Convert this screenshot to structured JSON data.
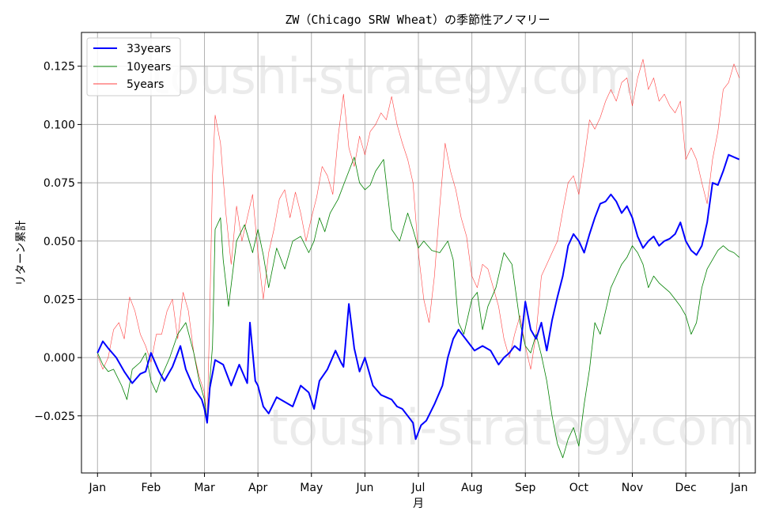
{
  "chart_data": {
    "type": "line",
    "title": "ZW（Chicago SRW Wheat）の季節性アノマリー",
    "xlabel": "月",
    "ylabel": "リターン累計",
    "x_ticks": [
      "Jan",
      "Feb",
      "Mar",
      "Apr",
      "May",
      "Jun",
      "Jul",
      "Aug",
      "Sep",
      "Oct",
      "Nov",
      "Dec",
      "Jan"
    ],
    "y_ticks": [
      "0.125",
      "0.100",
      "0.075",
      "0.050",
      "0.025",
      "0.000",
      "−0.025"
    ],
    "y_tick_values": [
      0.125,
      0.1,
      0.075,
      0.05,
      0.025,
      0.0,
      -0.025
    ],
    "ylim": [
      -0.0495,
      0.1395
    ],
    "xlim": [
      -0.3,
      12.3
    ],
    "grid": true,
    "legend_position": "top-left",
    "watermark": "toushi-strategy.com",
    "series": [
      {
        "name": "33years",
        "color": "#0000ff",
        "x": [
          0.0,
          0.1,
          0.2,
          0.35,
          0.5,
          0.65,
          0.8,
          0.9,
          1.0,
          1.15,
          1.25,
          1.4,
          1.55,
          1.65,
          1.8,
          1.95,
          2.0,
          2.05,
          2.1,
          2.2,
          2.35,
          2.5,
          2.65,
          2.8,
          2.85,
          2.95,
          3.0,
          3.1,
          3.2,
          3.35,
          3.5,
          3.65,
          3.8,
          3.95,
          4.05,
          4.15,
          4.3,
          4.45,
          4.55,
          4.6,
          4.7,
          4.8,
          4.9,
          5.0,
          5.15,
          5.3,
          5.5,
          5.6,
          5.7,
          5.8,
          5.9,
          5.95,
          6.05,
          6.15,
          6.3,
          6.45,
          6.55,
          6.65,
          6.75,
          6.85,
          6.95,
          7.05,
          7.2,
          7.35,
          7.5,
          7.6,
          7.7,
          7.8,
          7.9,
          8.0,
          8.1,
          8.2,
          8.3,
          8.4,
          8.5,
          8.6,
          8.7,
          8.8,
          8.9,
          9.0,
          9.1,
          9.2,
          9.3,
          9.4,
          9.5,
          9.6,
          9.7,
          9.8,
          9.9,
          10.0,
          10.1,
          10.2,
          10.3,
          10.4,
          10.5,
          10.6,
          10.7,
          10.8,
          10.9,
          11.0,
          11.1,
          11.2,
          11.3,
          11.4,
          11.5,
          11.6,
          11.7,
          11.8,
          11.9,
          12.0
        ],
        "values": [
          0.002,
          0.007,
          0.004,
          0.0,
          -0.006,
          -0.011,
          -0.007,
          -0.006,
          0.002,
          -0.006,
          -0.01,
          -0.004,
          0.005,
          -0.005,
          -0.013,
          -0.018,
          -0.022,
          -0.028,
          -0.013,
          -0.001,
          -0.003,
          -0.012,
          -0.003,
          -0.011,
          0.015,
          -0.01,
          -0.012,
          -0.021,
          -0.024,
          -0.017,
          -0.019,
          -0.021,
          -0.012,
          -0.015,
          -0.022,
          -0.01,
          -0.005,
          0.003,
          -0.002,
          -0.004,
          0.023,
          0.004,
          -0.006,
          0.0,
          -0.012,
          -0.016,
          -0.018,
          -0.021,
          -0.022,
          -0.025,
          -0.028,
          -0.035,
          -0.029,
          -0.027,
          -0.02,
          -0.012,
          0.0,
          0.008,
          0.012,
          0.009,
          0.006,
          0.003,
          0.005,
          0.003,
          -0.003,
          0.0,
          0.002,
          0.005,
          0.003,
          0.024,
          0.012,
          0.008,
          0.015,
          0.003,
          0.016,
          0.026,
          0.035,
          0.048,
          0.053,
          0.05,
          0.045,
          0.053,
          0.06,
          0.066,
          0.067,
          0.07,
          0.067,
          0.062,
          0.065,
          0.06,
          0.052,
          0.047,
          0.05,
          0.052,
          0.048,
          0.05,
          0.051,
          0.053,
          0.058,
          0.05,
          0.046,
          0.044,
          0.048,
          0.058,
          0.075,
          0.074,
          0.08,
          0.087,
          0.086,
          0.085
        ]
      },
      {
        "name": "10years",
        "color": "#008000",
        "x": [
          0.0,
          0.1,
          0.2,
          0.3,
          0.45,
          0.55,
          0.65,
          0.8,
          0.9,
          1.0,
          1.1,
          1.2,
          1.35,
          1.5,
          1.65,
          1.8,
          1.9,
          2.0,
          2.05,
          2.1,
          2.15,
          2.2,
          2.3,
          2.35,
          2.45,
          2.6,
          2.75,
          2.9,
          3.0,
          3.1,
          3.2,
          3.35,
          3.5,
          3.65,
          3.8,
          3.95,
          4.05,
          4.15,
          4.25,
          4.35,
          4.5,
          4.6,
          4.7,
          4.8,
          4.9,
          5.0,
          5.1,
          5.2,
          5.35,
          5.5,
          5.65,
          5.8,
          5.9,
          6.0,
          6.1,
          6.25,
          6.4,
          6.55,
          6.65,
          6.75,
          6.85,
          7.0,
          7.1,
          7.2,
          7.3,
          7.45,
          7.6,
          7.75,
          7.9,
          8.0,
          8.1,
          8.2,
          8.3,
          8.4,
          8.5,
          8.6,
          8.7,
          8.8,
          8.9,
          9.0,
          9.1,
          9.2,
          9.3,
          9.4,
          9.5,
          9.6,
          9.7,
          9.8,
          9.9,
          10.0,
          10.1,
          10.2,
          10.3,
          10.4,
          10.5,
          10.6,
          10.7,
          10.8,
          10.9,
          11.0,
          11.1,
          11.2,
          11.3,
          11.4,
          11.5,
          11.6,
          11.7,
          11.8,
          11.9,
          12.0
        ],
        "values": [
          0.002,
          -0.003,
          -0.006,
          -0.005,
          -0.012,
          -0.018,
          -0.005,
          -0.002,
          0.002,
          -0.01,
          -0.015,
          -0.008,
          0.0,
          0.01,
          0.015,
          0.002,
          -0.01,
          -0.018,
          -0.027,
          -0.01,
          0.005,
          0.055,
          0.06,
          0.042,
          0.022,
          0.05,
          0.057,
          0.045,
          0.055,
          0.044,
          0.03,
          0.047,
          0.038,
          0.05,
          0.052,
          0.045,
          0.05,
          0.06,
          0.054,
          0.062,
          0.068,
          0.074,
          0.08,
          0.086,
          0.075,
          0.072,
          0.074,
          0.08,
          0.085,
          0.055,
          0.05,
          0.062,
          0.055,
          0.047,
          0.05,
          0.046,
          0.045,
          0.05,
          0.042,
          0.015,
          0.01,
          0.025,
          0.028,
          0.012,
          0.022,
          0.03,
          0.045,
          0.04,
          0.015,
          0.005,
          0.002,
          0.01,
          0.001,
          -0.01,
          -0.025,
          -0.037,
          -0.043,
          -0.035,
          -0.03,
          -0.038,
          -0.02,
          -0.005,
          0.015,
          0.01,
          0.02,
          0.03,
          0.035,
          0.04,
          0.043,
          0.048,
          0.045,
          0.04,
          0.03,
          0.035,
          0.032,
          0.03,
          0.028,
          0.025,
          0.022,
          0.018,
          0.01,
          0.015,
          0.03,
          0.038,
          0.042,
          0.046,
          0.048,
          0.046,
          0.045,
          0.043
        ]
      },
      {
        "name": "5years",
        "color": "#ff0000",
        "x": [
          0.0,
          0.1,
          0.2,
          0.3,
          0.4,
          0.5,
          0.6,
          0.7,
          0.8,
          0.9,
          1.0,
          1.1,
          1.2,
          1.3,
          1.4,
          1.5,
          1.6,
          1.7,
          1.8,
          1.9,
          2.0,
          2.05,
          2.1,
          2.15,
          2.2,
          2.3,
          2.4,
          2.5,
          2.6,
          2.7,
          2.8,
          2.9,
          3.0,
          3.1,
          3.2,
          3.3,
          3.4,
          3.5,
          3.6,
          3.7,
          3.8,
          3.9,
          4.0,
          4.1,
          4.2,
          4.3,
          4.4,
          4.5,
          4.6,
          4.7,
          4.8,
          4.9,
          5.0,
          5.1,
          5.2,
          5.3,
          5.4,
          5.5,
          5.6,
          5.7,
          5.8,
          5.9,
          6.0,
          6.1,
          6.2,
          6.3,
          6.4,
          6.5,
          6.6,
          6.7,
          6.8,
          6.9,
          7.0,
          7.1,
          7.2,
          7.3,
          7.4,
          7.5,
          7.6,
          7.7,
          7.8,
          7.9,
          8.0,
          8.1,
          8.2,
          8.3,
          8.4,
          8.5,
          8.6,
          8.7,
          8.8,
          8.9,
          9.0,
          9.1,
          9.2,
          9.3,
          9.4,
          9.5,
          9.6,
          9.7,
          9.8,
          9.9,
          10.0,
          10.1,
          10.2,
          10.3,
          10.4,
          10.5,
          10.6,
          10.7,
          10.8,
          10.9,
          11.0,
          11.1,
          11.2,
          11.3,
          11.4,
          11.5,
          11.6,
          11.7,
          11.8,
          11.9,
          12.0
        ],
        "values": [
          0.001,
          -0.005,
          0.0,
          0.012,
          0.015,
          0.008,
          0.026,
          0.02,
          0.01,
          0.005,
          -0.002,
          0.01,
          0.01,
          0.02,
          0.025,
          0.008,
          0.028,
          0.02,
          0.002,
          -0.008,
          -0.015,
          -0.028,
          0.02,
          0.078,
          0.104,
          0.092,
          0.062,
          0.04,
          0.065,
          0.05,
          0.06,
          0.07,
          0.045,
          0.025,
          0.045,
          0.055,
          0.068,
          0.072,
          0.06,
          0.071,
          0.062,
          0.05,
          0.06,
          0.069,
          0.082,
          0.078,
          0.07,
          0.095,
          0.113,
          0.09,
          0.082,
          0.095,
          0.087,
          0.097,
          0.1,
          0.105,
          0.102,
          0.112,
          0.1,
          0.092,
          0.085,
          0.075,
          0.045,
          0.025,
          0.015,
          0.035,
          0.065,
          0.092,
          0.08,
          0.072,
          0.06,
          0.052,
          0.035,
          0.03,
          0.04,
          0.038,
          0.03,
          0.022,
          0.008,
          0.0,
          0.01,
          0.018,
          0.005,
          -0.005,
          0.01,
          0.035,
          0.04,
          0.045,
          0.05,
          0.063,
          0.075,
          0.078,
          0.07,
          0.085,
          0.102,
          0.098,
          0.103,
          0.11,
          0.115,
          0.11,
          0.118,
          0.12,
          0.108,
          0.12,
          0.128,
          0.115,
          0.12,
          0.11,
          0.113,
          0.108,
          0.105,
          0.11,
          0.085,
          0.09,
          0.085,
          0.075,
          0.066,
          0.085,
          0.097,
          0.115,
          0.118,
          0.126,
          0.12
        ]
      }
    ]
  }
}
